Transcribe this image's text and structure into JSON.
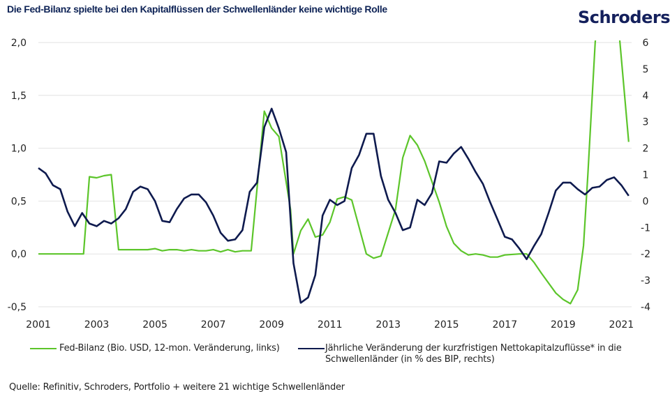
{
  "header": {
    "title": "Die Fed-Bilanz spielte bei den Kapitalflüssen der Schwellenländer keine wichtige Rolle",
    "logo": "Schroders"
  },
  "legend": {
    "fed": "Fed-Bilanz (Bio. USD, 12-mon. Veränderung, links)",
    "flows_line1": "Jährliche Veränderung der kurzfristigen Nettokapitalzuflüsse* in die",
    "flows_line2": "Schwellenländer (in % des BIP, rechts)"
  },
  "source": "Quelle: Refinitiv, Schroders, Portfolio + weitere 21 wichtige Schwellenländer",
  "colors": {
    "fed": "#5cc52a",
    "flows": "#0e1a4e",
    "grid": "#e2e2e2"
  },
  "chart_data": {
    "type": "line",
    "title": "Die Fed-Bilanz spielte bei den Kapitalflüssen der Schwellenländer keine wichtige Rolle",
    "xlabel": "",
    "ylabel_left": "Bio. USD",
    "ylabel_right": "% des BIP",
    "xlim": [
      2001,
      2021.35
    ],
    "ylim_left": [
      -0.5,
      2.0
    ],
    "ylim_right": [
      -4,
      6
    ],
    "x_ticks": [
      "2001",
      "2003",
      "2005",
      "2007",
      "2009",
      "2011",
      "2013",
      "2015",
      "2017",
      "2019",
      "2021"
    ],
    "y_left_ticks": [
      "2,0",
      "1,5",
      "1,0",
      "0,5",
      "0,0",
      "-0,5"
    ],
    "y_right_ticks": [
      "6",
      "5",
      "4",
      "3",
      "2",
      "1",
      "0",
      "-1",
      "-2",
      "-3",
      "-4"
    ],
    "grid": true,
    "legend_position": "bottom",
    "series": [
      {
        "name": "Fed-Bilanz (Bio. USD, 12-mon. Veränderung, links)",
        "axis": "left",
        "points": [
          [
            2001.0,
            0.0
          ],
          [
            2001.5,
            0.0
          ],
          [
            2002.0,
            0.0
          ],
          [
            2002.5,
            0.0
          ],
          [
            2002.55,
            0.0
          ],
          [
            2002.75,
            0.73
          ],
          [
            2003.0,
            0.72
          ],
          [
            2003.25,
            0.74
          ],
          [
            2003.5,
            0.75
          ],
          [
            2003.75,
            0.04
          ],
          [
            2004.25,
            0.04
          ],
          [
            2004.75,
            0.04
          ],
          [
            2005.0,
            0.05
          ],
          [
            2005.25,
            0.03
          ],
          [
            2005.5,
            0.04
          ],
          [
            2005.75,
            0.04
          ],
          [
            2006.0,
            0.03
          ],
          [
            2006.25,
            0.04
          ],
          [
            2006.5,
            0.03
          ],
          [
            2006.75,
            0.03
          ],
          [
            2007.0,
            0.04
          ],
          [
            2007.25,
            0.02
          ],
          [
            2007.5,
            0.04
          ],
          [
            2007.75,
            0.02
          ],
          [
            2008.0,
            0.03
          ],
          [
            2008.3,
            0.03
          ],
          [
            2008.75,
            1.35
          ],
          [
            2009.0,
            1.19
          ],
          [
            2009.25,
            1.11
          ],
          [
            2009.65,
            0.42
          ],
          [
            2009.75,
            0.0
          ],
          [
            2010.0,
            0.22
          ],
          [
            2010.25,
            0.33
          ],
          [
            2010.5,
            0.16
          ],
          [
            2010.75,
            0.18
          ],
          [
            2011.0,
            0.3
          ],
          [
            2011.25,
            0.52
          ],
          [
            2011.5,
            0.54
          ],
          [
            2011.75,
            0.51
          ],
          [
            2012.25,
            0.0
          ],
          [
            2012.5,
            -0.04
          ],
          [
            2012.75,
            -0.02
          ],
          [
            2013.25,
            0.42
          ],
          [
            2013.5,
            0.91
          ],
          [
            2013.75,
            1.12
          ],
          [
            2014.0,
            1.03
          ],
          [
            2014.25,
            0.88
          ],
          [
            2014.75,
            0.49
          ],
          [
            2015.0,
            0.26
          ],
          [
            2015.25,
            0.1
          ],
          [
            2015.5,
            0.03
          ],
          [
            2015.75,
            -0.01
          ],
          [
            2016.0,
            0.0
          ],
          [
            2016.25,
            -0.01
          ],
          [
            2016.5,
            -0.03
          ],
          [
            2016.75,
            -0.03
          ],
          [
            2017.0,
            -0.01
          ],
          [
            2017.5,
            0.0
          ],
          [
            2017.75,
            0.0
          ],
          [
            2018.0,
            -0.08
          ],
          [
            2018.25,
            -0.18
          ],
          [
            2018.75,
            -0.37
          ],
          [
            2019.0,
            -0.43
          ],
          [
            2019.25,
            -0.47
          ],
          [
            2019.5,
            -0.34
          ],
          [
            2019.7,
            0.08
          ],
          [
            2019.85,
            0.75
          ],
          [
            2020.1,
            2.0
          ],
          [
            2020.5,
            3.2
          ],
          [
            2020.75,
            2.6
          ],
          [
            2020.95,
            2.0
          ],
          [
            2021.25,
            1.06
          ]
        ]
      },
      {
        "name": "Jährliche Veränderung der kurzfristigen Nettokapitalzuflüsse* in die Schwellenländer (in % des BIP, rechts)",
        "axis": "right",
        "points": [
          [
            2001.0,
            1.25
          ],
          [
            2001.25,
            1.05
          ],
          [
            2001.5,
            0.6
          ],
          [
            2001.75,
            0.45
          ],
          [
            2002.0,
            -0.4
          ],
          [
            2002.25,
            -0.95
          ],
          [
            2002.5,
            -0.45
          ],
          [
            2002.75,
            -0.85
          ],
          [
            2003.0,
            -0.95
          ],
          [
            2003.25,
            -0.75
          ],
          [
            2003.5,
            -0.85
          ],
          [
            2003.75,
            -0.65
          ],
          [
            2004.0,
            -0.3
          ],
          [
            2004.25,
            0.35
          ],
          [
            2004.5,
            0.55
          ],
          [
            2004.75,
            0.45
          ],
          [
            2005.0,
            0.0
          ],
          [
            2005.25,
            -0.75
          ],
          [
            2005.5,
            -0.8
          ],
          [
            2005.75,
            -0.3
          ],
          [
            2006.0,
            0.1
          ],
          [
            2006.25,
            0.25
          ],
          [
            2006.5,
            0.25
          ],
          [
            2006.75,
            -0.05
          ],
          [
            2007.0,
            -0.55
          ],
          [
            2007.25,
            -1.2
          ],
          [
            2007.5,
            -1.5
          ],
          [
            2007.75,
            -1.45
          ],
          [
            2008.0,
            -1.1
          ],
          [
            2008.25,
            0.35
          ],
          [
            2008.5,
            0.7
          ],
          [
            2008.75,
            2.8
          ],
          [
            2009.0,
            3.5
          ],
          [
            2009.25,
            2.75
          ],
          [
            2009.5,
            1.85
          ],
          [
            2009.75,
            -2.35
          ],
          [
            2010.0,
            -3.85
          ],
          [
            2010.25,
            -3.65
          ],
          [
            2010.5,
            -2.8
          ],
          [
            2010.75,
            -0.55
          ],
          [
            2011.0,
            0.05
          ],
          [
            2011.25,
            -0.15
          ],
          [
            2011.5,
            0.0
          ],
          [
            2011.75,
            1.25
          ],
          [
            2012.0,
            1.75
          ],
          [
            2012.25,
            2.55
          ],
          [
            2012.5,
            2.55
          ],
          [
            2012.75,
            0.95
          ],
          [
            2013.0,
            0.05
          ],
          [
            2013.25,
            -0.45
          ],
          [
            2013.5,
            -1.1
          ],
          [
            2013.75,
            -1.0
          ],
          [
            2014.0,
            0.05
          ],
          [
            2014.25,
            -0.15
          ],
          [
            2014.5,
            0.3
          ],
          [
            2014.75,
            1.5
          ],
          [
            2015.0,
            1.45
          ],
          [
            2015.25,
            1.8
          ],
          [
            2015.5,
            2.05
          ],
          [
            2015.75,
            1.6
          ],
          [
            2016.0,
            1.1
          ],
          [
            2016.25,
            0.65
          ],
          [
            2016.5,
            -0.05
          ],
          [
            2016.75,
            -0.7
          ],
          [
            2017.0,
            -1.35
          ],
          [
            2017.25,
            -1.45
          ],
          [
            2017.5,
            -1.8
          ],
          [
            2017.75,
            -2.2
          ],
          [
            2018.0,
            -1.7
          ],
          [
            2018.25,
            -1.25
          ],
          [
            2018.5,
            -0.45
          ],
          [
            2018.75,
            0.4
          ],
          [
            2019.0,
            0.7
          ],
          [
            2019.25,
            0.7
          ],
          [
            2019.5,
            0.45
          ],
          [
            2019.75,
            0.25
          ],
          [
            2020.0,
            0.5
          ],
          [
            2020.25,
            0.55
          ],
          [
            2020.5,
            0.8
          ],
          [
            2020.75,
            0.9
          ],
          [
            2021.0,
            0.6
          ],
          [
            2021.25,
            0.2
          ]
        ]
      }
    ]
  }
}
